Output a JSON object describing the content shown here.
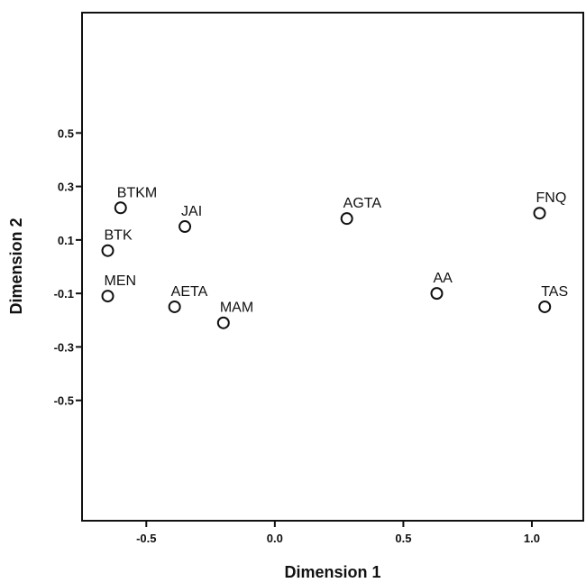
{
  "chart_data": {
    "type": "scatter",
    "title": "",
    "xlabel": "Dimension 1",
    "ylabel": "Dimension 2",
    "xlim": [
      -0.75,
      1.2
    ],
    "ylim": [
      -0.95,
      0.95
    ],
    "x_ticks": [
      -0.5,
      0.0,
      0.5,
      1.0
    ],
    "x_tick_labels": [
      "-0.5",
      "0.0",
      "0.5",
      "1.0"
    ],
    "y_ticks": [
      0.5,
      0.3,
      0.1,
      -0.1,
      -0.3,
      -0.5
    ],
    "y_tick_labels": [
      "0.5",
      "0.3",
      "0.1",
      "-0.1",
      "-0.3",
      "-0.5"
    ],
    "grid": false,
    "legend": "none",
    "marker": "open-circle",
    "points": [
      {
        "label": "BTKM",
        "x": -0.6,
        "y": 0.22
      },
      {
        "label": "JAI",
        "x": -0.35,
        "y": 0.15
      },
      {
        "label": "BTK",
        "x": -0.65,
        "y": 0.06
      },
      {
        "label": "MEN",
        "x": -0.65,
        "y": -0.11
      },
      {
        "label": "AETA",
        "x": -0.39,
        "y": -0.15
      },
      {
        "label": "MAM",
        "x": -0.2,
        "y": -0.21
      },
      {
        "label": "AGTA",
        "x": 0.28,
        "y": 0.18
      },
      {
        "label": "AA",
        "x": 0.63,
        "y": -0.1
      },
      {
        "label": "FNQ",
        "x": 1.03,
        "y": 0.2
      },
      {
        "label": "TAS",
        "x": 1.05,
        "y": -0.15
      }
    ]
  }
}
